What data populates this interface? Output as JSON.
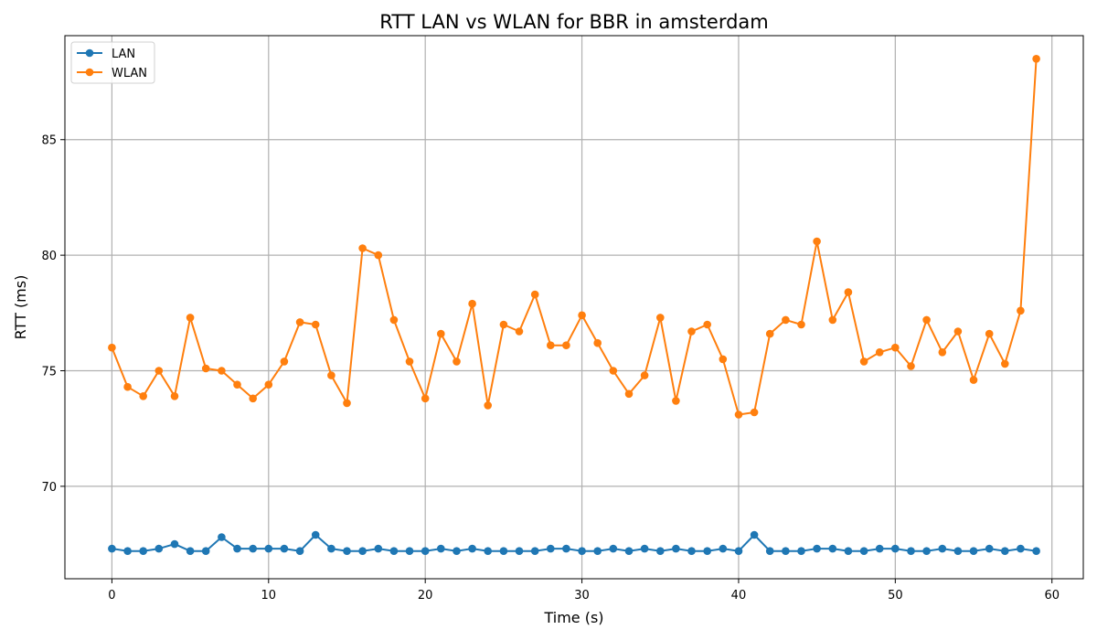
{
  "chart_data": {
    "type": "line",
    "title": "RTT LAN vs WLAN for BBR in amsterdam",
    "xlabel": "Time (s)",
    "ylabel": "RTT (ms)",
    "xlim": [
      -3,
      62
    ],
    "ylim": [
      66,
      89.5
    ],
    "xticks": [
      0,
      10,
      20,
      30,
      40,
      50,
      60
    ],
    "yticks": [
      70,
      75,
      80,
      85
    ],
    "grid": true,
    "legend_position": "top-left",
    "series": [
      {
        "name": "LAN",
        "color": "#1f77b4",
        "x": [
          0,
          1,
          2,
          3,
          4,
          5,
          6,
          7,
          8,
          9,
          10,
          11,
          12,
          13,
          14,
          15,
          16,
          17,
          18,
          19,
          20,
          21,
          22,
          23,
          24,
          25,
          26,
          27,
          28,
          29,
          30,
          31,
          32,
          33,
          34,
          35,
          36,
          37,
          38,
          39,
          40,
          41,
          42,
          43,
          44,
          45,
          46,
          47,
          48,
          49,
          50,
          51,
          52,
          53,
          54,
          55,
          56,
          57,
          58,
          59
        ],
        "y": [
          67.3,
          67.2,
          67.2,
          67.3,
          67.5,
          67.2,
          67.2,
          67.8,
          67.3,
          67.3,
          67.3,
          67.3,
          67.2,
          67.9,
          67.3,
          67.2,
          67.2,
          67.3,
          67.2,
          67.2,
          67.2,
          67.3,
          67.2,
          67.3,
          67.2,
          67.2,
          67.2,
          67.2,
          67.3,
          67.3,
          67.2,
          67.2,
          67.3,
          67.2,
          67.3,
          67.2,
          67.3,
          67.2,
          67.2,
          67.3,
          67.2,
          67.9,
          67.2,
          67.2,
          67.2,
          67.3,
          67.3,
          67.2,
          67.2,
          67.3,
          67.3,
          67.2,
          67.2,
          67.3,
          67.2,
          67.2,
          67.3,
          67.2,
          67.3,
          67.2
        ]
      },
      {
        "name": "WLAN",
        "color": "#ff7f0e",
        "x": [
          0,
          1,
          2,
          3,
          4,
          5,
          6,
          7,
          8,
          9,
          10,
          11,
          12,
          13,
          14,
          15,
          16,
          17,
          18,
          19,
          20,
          21,
          22,
          23,
          24,
          25,
          26,
          27,
          28,
          29,
          30,
          31,
          32,
          33,
          34,
          35,
          36,
          37,
          38,
          39,
          40,
          41,
          42,
          43,
          44,
          45,
          46,
          47,
          48,
          49,
          50,
          51,
          52,
          53,
          54,
          55,
          56,
          57,
          58,
          59
        ],
        "y": [
          76.0,
          74.3,
          73.9,
          75.0,
          73.9,
          77.3,
          75.1,
          75.0,
          74.4,
          73.8,
          74.4,
          75.4,
          77.1,
          77.0,
          74.8,
          73.6,
          80.3,
          80.0,
          77.2,
          75.4,
          73.8,
          76.6,
          75.4,
          77.9,
          73.5,
          77.0,
          76.7,
          78.3,
          76.1,
          76.1,
          77.4,
          76.2,
          75.0,
          74.0,
          74.8,
          77.3,
          73.7,
          76.7,
          77.0,
          75.5,
          73.1,
          73.2,
          76.6,
          77.2,
          77.0,
          80.6,
          77.2,
          78.4,
          75.4,
          75.8,
          76.0,
          75.2,
          77.2,
          75.8,
          76.7,
          74.6,
          76.6,
          75.3,
          77.6,
          88.5
        ]
      }
    ]
  }
}
